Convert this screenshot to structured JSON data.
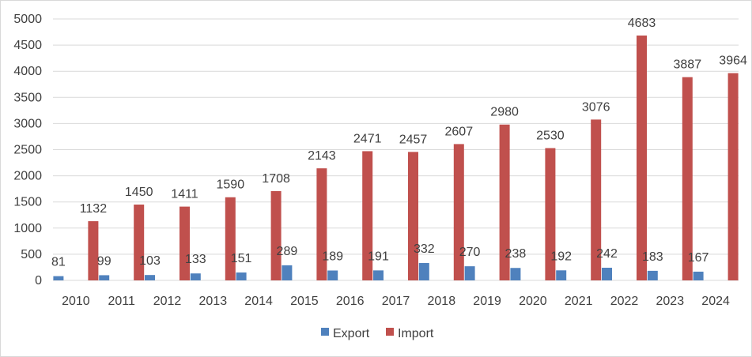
{
  "chart_data": {
    "type": "bar",
    "categories": [
      "2010",
      "2011",
      "2012",
      "2013",
      "2014",
      "2015",
      "2016",
      "2017",
      "2018",
      "2019",
      "2020",
      "2021",
      "2022",
      "2023",
      "2024"
    ],
    "series": [
      {
        "name": "Export",
        "color": "#4f81bd",
        "values": [
          81,
          99,
          103,
          133,
          151,
          289,
          189,
          191,
          332,
          270,
          238,
          192,
          242,
          183,
          167
        ]
      },
      {
        "name": "Import",
        "color": "#c0504d",
        "values": [
          1132,
          1450,
          1411,
          1590,
          1708,
          2143,
          2471,
          2457,
          2607,
          2980,
          2530,
          3076,
          4683,
          3887,
          3964
        ]
      }
    ],
    "ylim": [
      0,
      5000
    ],
    "yticks": [
      0,
      500,
      1000,
      1500,
      2000,
      2500,
      3000,
      3500,
      4000,
      4500,
      5000
    ],
    "grid": true,
    "legend_position": "bottom",
    "title": "",
    "xlabel": "",
    "ylabel": ""
  }
}
